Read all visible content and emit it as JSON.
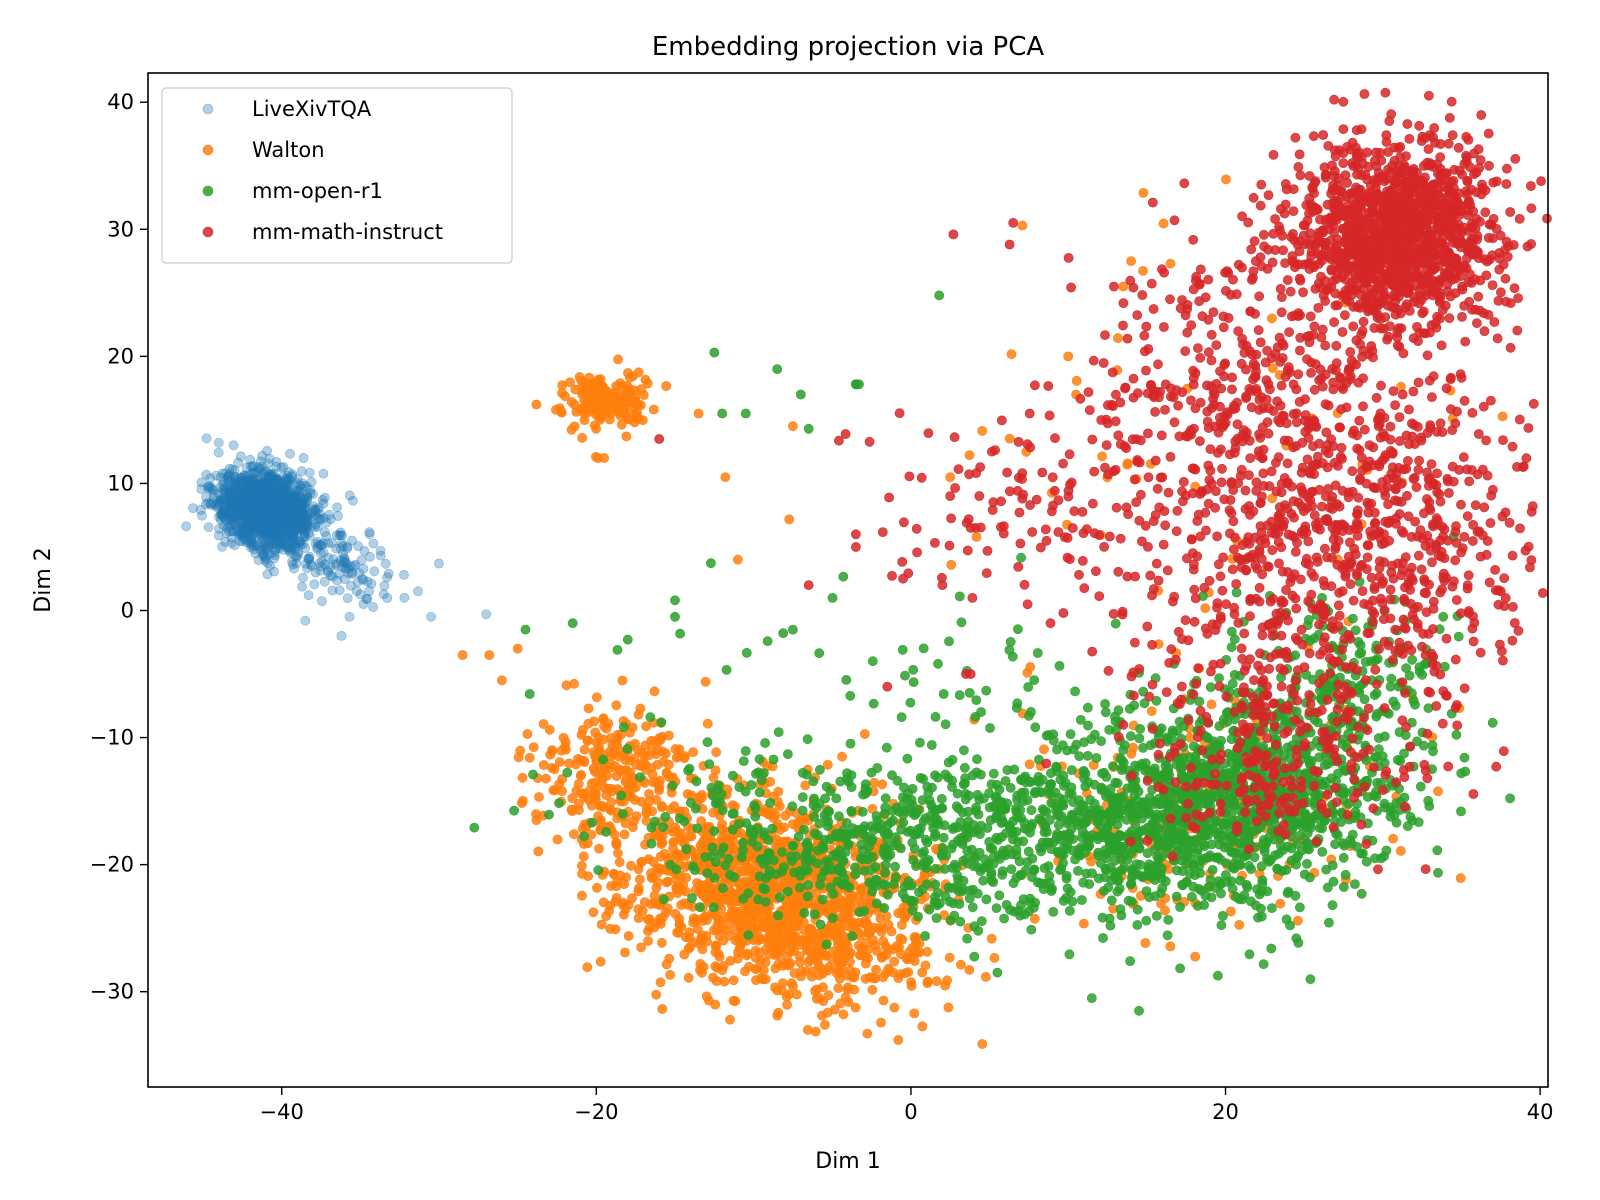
{
  "chart_data": {
    "type": "scatter",
    "title": "Embedding projection via PCA",
    "xlabel": "Dim 1",
    "ylabel": "Dim 2",
    "xlim": [
      -48.5,
      40.5
    ],
    "ylim": [
      -37.5,
      42.3
    ],
    "xticks": [
      -40,
      -20,
      0,
      20,
      40
    ],
    "yticks": [
      -30,
      -20,
      -10,
      0,
      10,
      20,
      30,
      40
    ],
    "xtick_labels": [
      "−40",
      "−20",
      "0",
      "20",
      "40"
    ],
    "ytick_labels": [
      "−30",
      "−20",
      "−10",
      "0",
      "10",
      "20",
      "30",
      "40"
    ],
    "grid": false,
    "legend_position": "upper-left",
    "series": [
      {
        "name": "LiveXivTQA",
        "color": "#1f77b4",
        "alpha": 0.35,
        "clusters": [
          {
            "center": [
              -41.0,
              8.0
            ],
            "spread": [
              1.6,
              1.4
            ],
            "rotation_deg": -38,
            "count": 1400,
            "shape": "gaussian"
          },
          {
            "center": [
              -36.5,
              3.5
            ],
            "spread": [
              2.2,
              1.6
            ],
            "rotation_deg": -30,
            "count": 120,
            "shape": "gaussian"
          }
        ],
        "points": [
          [
            -44,
            13.2
          ],
          [
            -30,
            3.7
          ],
          [
            -30.5,
            -0.5
          ],
          [
            -27,
            -0.3
          ],
          [
            -36.2,
            -2.0
          ],
          [
            -38.5,
            -0.8
          ],
          [
            -32.2,
            1.0
          ],
          [
            -34.8,
            0.5
          ]
        ]
      },
      {
        "name": "Walton",
        "color": "#ff7f0e",
        "alpha": 0.85,
        "clusters": [
          {
            "center": [
              -19.5,
              16.5
            ],
            "spread": [
              1.4,
              1.1
            ],
            "rotation_deg": 0,
            "count": 180,
            "shape": "gaussian"
          },
          {
            "center": [
              -9.0,
              -22.0
            ],
            "spread": [
              5.0,
              3.6
            ],
            "rotation_deg": -20,
            "count": 1300,
            "shape": "gaussian"
          },
          {
            "center": [
              -19.0,
              -13.0
            ],
            "spread": [
              2.6,
              2.6
            ],
            "rotation_deg": 0,
            "count": 250,
            "shape": "gaussian"
          },
          {
            "center": [
              -3.0,
              -27.0
            ],
            "spread": [
              3.0,
              2.0
            ],
            "rotation_deg": 0,
            "count": 120,
            "shape": "gaussian"
          },
          {
            "center": [
              18.0,
              -15.0
            ],
            "spread": [
              6.0,
              5.0
            ],
            "rotation_deg": 0,
            "count": 180,
            "shape": "gaussian"
          },
          {
            "center": [
              20.0,
              12.0
            ],
            "spread": [
              9.0,
              11.0
            ],
            "rotation_deg": 0,
            "count": 60,
            "shape": "gaussian"
          }
        ],
        "points": [
          [
            -28.5,
            -3.5
          ],
          [
            -26.8,
            -3.5
          ],
          [
            -25,
            -3.0
          ],
          [
            -26,
            -5.5
          ],
          [
            -13.5,
            15.5
          ],
          [
            -11.8,
            10.5
          ],
          [
            -11,
            4.0
          ],
          [
            -7.5,
            14.5
          ],
          [
            10.5,
            17.0
          ],
          [
            10,
            20.0
          ],
          [
            13.5,
            25.5
          ],
          [
            14,
            27.5
          ],
          [
            2.5,
            10.5
          ],
          [
            -0.8,
            -33.8
          ],
          [
            -11.5,
            -32.2
          ],
          [
            -23.8,
            -16.5
          ],
          [
            -19.5,
            12.0
          ]
        ]
      },
      {
        "name": "mm-open-r1",
        "color": "#2ca02c",
        "alpha": 0.85,
        "clusters": [
          {
            "center": [
              21.0,
              -14.5
            ],
            "spread": [
              5.5,
              4.2
            ],
            "rotation_deg": 25,
            "count": 1100,
            "shape": "gaussian"
          },
          {
            "center": [
              8.0,
              -17.5
            ],
            "spread": [
              7.5,
              3.3
            ],
            "rotation_deg": 5,
            "count": 700,
            "shape": "gaussian"
          },
          {
            "center": [
              -6.0,
              -18.0
            ],
            "spread": [
              6.5,
              3.0
            ],
            "rotation_deg": -10,
            "count": 300,
            "shape": "gaussian"
          },
          {
            "center": [
              28.0,
              -5.0
            ],
            "spread": [
              3.5,
              3.5
            ],
            "rotation_deg": 0,
            "count": 150,
            "shape": "gaussian"
          },
          {
            "center": [
              4.0,
              -6.0
            ],
            "spread": [
              10.0,
              5.0
            ],
            "rotation_deg": 0,
            "count": 80,
            "shape": "gaussian"
          }
        ],
        "points": [
          [
            1.8,
            24.8
          ],
          [
            -12.5,
            20.3
          ],
          [
            -8.5,
            19.0
          ],
          [
            -7.0,
            17.0
          ],
          [
            -3.5,
            17.8
          ],
          [
            -3.5,
            17.8
          ],
          [
            -3.3,
            17.8
          ],
          [
            -6.5,
            14.3
          ],
          [
            -12.0,
            15.5
          ],
          [
            -10.5,
            15.5
          ],
          [
            -15,
            0.8
          ],
          [
            -15,
            -0.5
          ],
          [
            -18,
            -2.3
          ],
          [
            -24.5,
            -1.5
          ],
          [
            -21.5,
            -1.0
          ],
          [
            -7.5,
            -1.5
          ],
          [
            11.5,
            -30.5
          ],
          [
            14.5,
            -31.5
          ],
          [
            5.5,
            -28.5
          ],
          [
            24.5,
            -25.8
          ],
          [
            26.5,
            -21.8
          ],
          [
            29.5,
            -19.5
          ],
          [
            34.5,
            5.8
          ]
        ]
      },
      {
        "name": "mm-math-instruct",
        "color": "#d62728",
        "alpha": 0.85,
        "clusters": [
          {
            "center": [
              30.5,
              29.5
            ],
            "spread": [
              3.2,
              3.6
            ],
            "rotation_deg": 0,
            "count": 1300,
            "shape": "gaussian"
          },
          {
            "center": [
              27.0,
              7.0
            ],
            "spread": [
              6.5,
              7.5
            ],
            "rotation_deg": 0,
            "count": 1000,
            "shape": "gaussian"
          },
          {
            "center": [
              24.0,
              -10.0
            ],
            "spread": [
              5.0,
              4.0
            ],
            "rotation_deg": 0,
            "count": 200,
            "shape": "gaussian"
          },
          {
            "center": [
              19.0,
              19.0
            ],
            "spread": [
              4.5,
              5.0
            ],
            "rotation_deg": 0,
            "count": 200,
            "shape": "gaussian"
          },
          {
            "center": [
              8.0,
              8.0
            ],
            "spread": [
              5.0,
              4.0
            ],
            "rotation_deg": 0,
            "count": 120,
            "shape": "gaussian"
          },
          {
            "center": [
              21.5,
              -14.5
            ],
            "spread": [
              2.5,
              2.0
            ],
            "rotation_deg": 0,
            "count": 50,
            "shape": "gaussian"
          }
        ],
        "points": [
          [
            6.5,
            30.5
          ],
          [
            2.7,
            29.6
          ],
          [
            -16,
            13.5
          ],
          [
            -3.5,
            6.0
          ],
          [
            -3.5,
            5.0
          ],
          [
            -0.5,
            2.5
          ],
          [
            2.5,
            9.0
          ],
          [
            3.8,
            6.5
          ],
          [
            3.8,
            -5.0
          ],
          [
            3.5,
            -5.0
          ],
          [
            -6.5,
            2.0
          ],
          [
            2.0,
            2.0
          ],
          [
            -1.5,
            -6.0
          ],
          [
            13.5,
            -9.0
          ],
          [
            37.5,
            29.5
          ],
          [
            37.0,
            9.5
          ],
          [
            37.5,
            1.5
          ]
        ]
      }
    ]
  }
}
